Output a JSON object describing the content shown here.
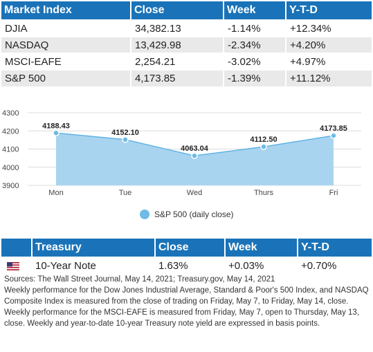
{
  "market_table": {
    "headers": [
      "Market Index",
      "Close",
      "Week",
      "Y-T-D"
    ],
    "rows": [
      [
        "DJIA",
        "34,382.13",
        "-1.14%",
        "+12.34%"
      ],
      [
        "NASDAQ",
        "13,429.98",
        "-2.34%",
        "+4.20%"
      ],
      [
        "MSCI-EAFE",
        "2,254.21",
        "-3.02%",
        "+4.97%"
      ],
      [
        "S&P 500",
        "4,173.85",
        "-1.39%",
        "+11.12%"
      ]
    ]
  },
  "chart_data": {
    "type": "area",
    "categories": [
      "Mon",
      "Tue",
      "Wed",
      "Thurs",
      "Fri"
    ],
    "series": [
      {
        "name": "S&P 500 (daily close)",
        "values": [
          4188.43,
          4152.1,
          4063.04,
          4112.5,
          4173.85
        ]
      }
    ],
    "data_labels": [
      "4188.43",
      "4152.10",
      "4063.04",
      "4112.50",
      "4173.85"
    ],
    "y_ticks": [
      "4300",
      "4200",
      "4100",
      "4000",
      "3900"
    ],
    "ylim": [
      3900,
      4300
    ],
    "grid": true,
    "legend_position": "bottom-center",
    "colors": {
      "fill": "#a9d4ef",
      "line": "#5fb3e4",
      "point": "#6dbbe6"
    }
  },
  "treasury_table": {
    "headers": [
      "",
      "Treasury",
      "Close",
      "Week",
      "Y-T-D"
    ],
    "rows": [
      [
        "us-flag-icon",
        "10-Year Note",
        "1.63%",
        "+0.03%",
        "+0.70%"
      ]
    ]
  },
  "notes": {
    "sources": "Sources: The Wall Street Journal, May 14, 2021; Treasury.gov, May 14, 2021",
    "body": "Weekly performance for the Dow Jones Industrial Average, Standard & Poor's 500 Index, and NASDAQ Composite Index is measured from the close of trading on Friday, May 7, to Friday, May 14, close. Weekly performance for the MSCI-EAFE is measured from Friday, May 7, open to Thursday, May 13, close. Weekly and year-to-date 10-year Treasury note yield are expressed in basis points."
  },
  "colors": {
    "header_bg": "#1a73b8",
    "stripe": "#e9e9e9"
  }
}
